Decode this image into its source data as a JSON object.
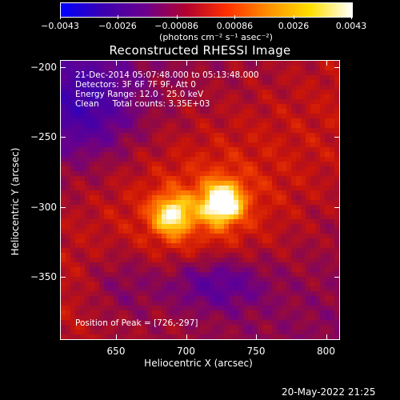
{
  "colorbar": {
    "tick_labels": [
      "−0.0043",
      "−0.0026",
      "−0.00086",
      "0.00086",
      "0.0026",
      "0.0043"
    ],
    "tick_values": [
      -0.0043,
      -0.0026,
      -0.00086,
      0.00086,
      0.0026,
      0.0043
    ],
    "units_label": "(photons cm⁻² s⁻¹ asec⁻²)",
    "colors": [
      "#0000ff",
      "#3a00b0",
      "#6a0090",
      "#b00030",
      "#ff3000",
      "#ff9000",
      "#ffe000",
      "#ffffff"
    ]
  },
  "chart_data": {
    "type": "heatmap",
    "title": "Reconstructed RHESSI Image",
    "xlabel": "Heliocentric X (arcsec)",
    "ylabel": "Heliocentric Y (arcsec)",
    "xlim": [
      610,
      810
    ],
    "ylim": [
      -395,
      -195
    ],
    "x_ticks": [
      650,
      700,
      750,
      800
    ],
    "x_tick_labels": [
      "650",
      "700",
      "750",
      "800"
    ],
    "y_ticks": [
      -200,
      -250,
      -300,
      -350
    ],
    "y_tick_labels": [
      "−200",
      "−250",
      "−300",
      "−350"
    ],
    "colormap": "rhessi (blue-purple-red-orange-yellow-white)",
    "value_range": [
      -0.0043,
      0.0043
    ],
    "sources": [
      {
        "x": 726,
        "y": -297,
        "relative_intensity": 1.0
      },
      {
        "x": 690,
        "y": -306,
        "relative_intensity": 0.72
      }
    ],
    "annotations": [
      "21-Dec-2014 05:07:48.000 to 05:13:48.000",
      "Detectors: 3F 6F 7F 9F, Att 0",
      "Energy Range: 12.0 - 25.0 keV",
      "Clean     Total counts: 3.35E+03",
      "Position of Peak = [726,-297]"
    ]
  },
  "footer": {
    "timestamp": "20-May-2022 21:25"
  }
}
